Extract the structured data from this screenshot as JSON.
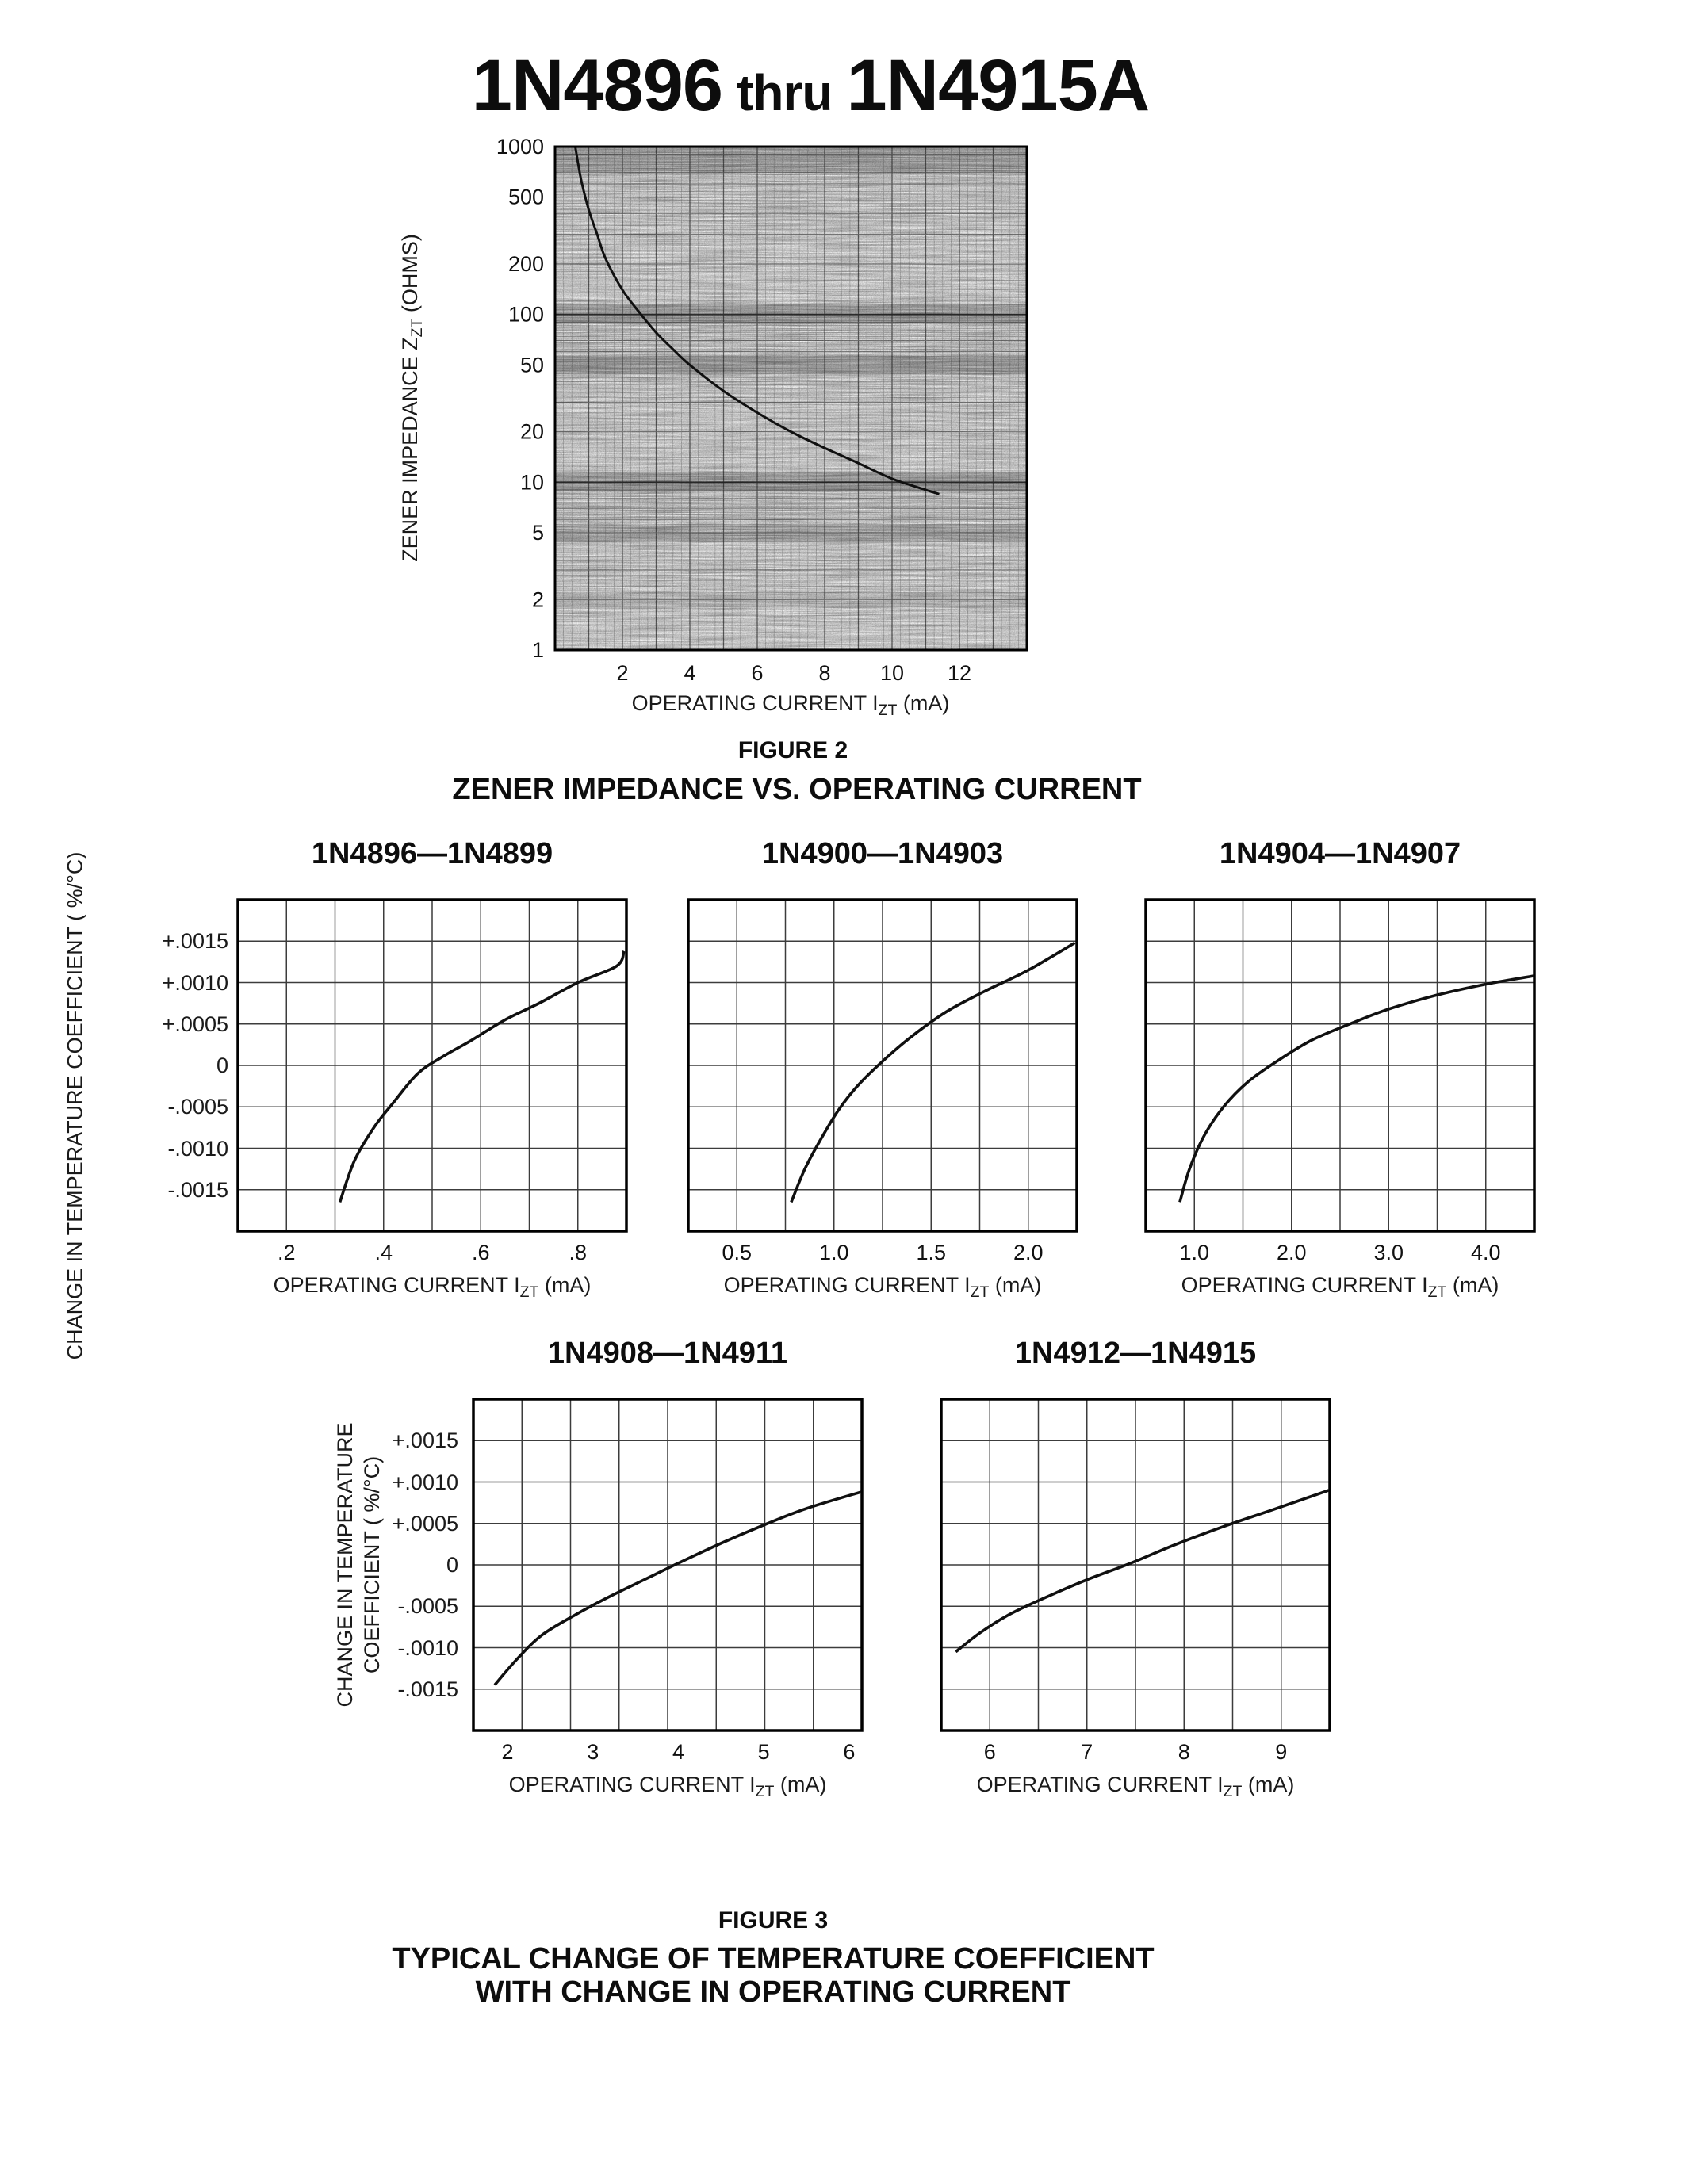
{
  "title": {
    "part_start": "1N4896",
    "thru": "thru",
    "part_end": "1N4915A"
  },
  "figure2": {
    "caption": "FIGURE 2",
    "subcaption": "ZENER IMPEDANCE VS. OPERATING CURRENT",
    "y_axis": {
      "pre": "ZENER IMPEDANCE Z",
      "sub": "ZT",
      "post": " (OHMS)"
    },
    "x_axis": {
      "pre": "OPERATING CURRENT I",
      "sub": "ZT",
      "post": " (mA)"
    }
  },
  "figure3": {
    "caption": "FIGURE 3",
    "subcaption_line1": "TYPICAL CHANGE OF TEMPERATURE COEFFICIENT",
    "subcaption_line2": "WITH CHANGE IN OPERATING CURRENT",
    "row1_y_axis_label": "CHANGE IN TEMPERATURE COEFFICIENT ( %/°C)",
    "row2_y_axis_label_line1": "CHANGE IN TEMPERATURE",
    "row2_y_axis_label_line2": "COEFFICIENT ( %/°C)",
    "x_axis": {
      "pre": "OPERATING CURRENT I",
      "sub": "ZT",
      "post": " (mA)"
    },
    "y_ticks": [
      {
        "label": "+.0015",
        "value": 0.0015
      },
      {
        "label": "+.0010",
        "value": 0.001
      },
      {
        "label": "+.0005",
        "value": 0.0005
      },
      {
        "label": "0",
        "value": 0
      },
      {
        "label": "-.0005",
        "value": -0.0005
      },
      {
        "label": "-.0010",
        "value": -0.001
      },
      {
        "label": "-.0015",
        "value": -0.0015
      }
    ]
  },
  "chart_data": [
    {
      "type": "line",
      "title": "ZENER IMPEDANCE VS. OPERATING CURRENT",
      "xlabel": "OPERATING CURRENT IZT (mA)",
      "ylabel": "ZENER IMPEDANCE ZZT (OHMS)",
      "x_scale": "linear",
      "y_scale": "log",
      "xlim": [
        0,
        14
      ],
      "ylim": [
        1,
        1000
      ],
      "grid": "dense scanned log-log grid",
      "x_ticks": [
        {
          "label": "2",
          "value": 2
        },
        {
          "label": "4",
          "value": 4
        },
        {
          "label": "6",
          "value": 6
        },
        {
          "label": "8",
          "value": 8
        },
        {
          "label": "10",
          "value": 10
        },
        {
          "label": "12",
          "value": 12
        }
      ],
      "y_ticks": [
        {
          "label": "1000",
          "value": 1000
        },
        {
          "label": "500",
          "value": 500
        },
        {
          "label": "200",
          "value": 200
        },
        {
          "label": "100",
          "value": 100
        },
        {
          "label": "50",
          "value": 50
        },
        {
          "label": "20",
          "value": 20
        },
        {
          "label": "10",
          "value": 10
        },
        {
          "label": "5",
          "value": 5
        },
        {
          "label": "2",
          "value": 2
        },
        {
          "label": "1",
          "value": 1
        }
      ],
      "points": [
        [
          0.6,
          1000
        ],
        [
          0.7,
          760
        ],
        [
          0.8,
          600
        ],
        [
          1.0,
          420
        ],
        [
          1.25,
          300
        ],
        [
          1.5,
          215
        ],
        [
          2,
          140
        ],
        [
          2.5,
          103
        ],
        [
          3,
          78
        ],
        [
          3.5,
          62
        ],
        [
          4,
          50
        ],
        [
          5,
          35
        ],
        [
          6,
          26
        ],
        [
          7,
          20
        ],
        [
          8,
          16
        ],
        [
          9,
          13
        ],
        [
          10,
          10.5
        ],
        [
          11,
          9
        ],
        [
          11.4,
          8.5
        ]
      ]
    },
    {
      "type": "line",
      "title": "1N4896—1N4899",
      "xlabel": "OPERATING CURRENT IZT (mA)",
      "ylabel": "CHANGE IN TEMPERATURE COEFFICIENT ( %/°C)",
      "xlim": [
        0.1,
        0.9
      ],
      "ylim": [
        -0.002,
        0.002
      ],
      "x_ticks": [
        {
          "label": ".2",
          "value": 0.2
        },
        {
          "label": ".4",
          "value": 0.4
        },
        {
          "label": ".6",
          "value": 0.6
        },
        {
          "label": ".8",
          "value": 0.8
        }
      ],
      "points": [
        [
          0.31,
          -0.00165
        ],
        [
          0.34,
          -0.00115
        ],
        [
          0.38,
          -0.00075
        ],
        [
          0.42,
          -0.00045
        ],
        [
          0.47,
          -0.0001
        ],
        [
          0.52,
          0.0001
        ],
        [
          0.58,
          0.0003
        ],
        [
          0.65,
          0.00055
        ],
        [
          0.72,
          0.00075
        ],
        [
          0.8,
          0.001
        ],
        [
          0.88,
          0.0012
        ],
        [
          0.895,
          0.00138
        ]
      ]
    },
    {
      "type": "line",
      "title": "1N4900—1N4903",
      "xlabel": "OPERATING CURRENT IZT (mA)",
      "ylabel": "CHANGE IN TEMPERATURE COEFFICIENT ( %/°C)",
      "xlim": [
        0.25,
        2.25
      ],
      "ylim": [
        -0.002,
        0.002
      ],
      "x_ticks": [
        {
          "label": "0.5",
          "value": 0.5
        },
        {
          "label": "1.0",
          "value": 1.0
        },
        {
          "label": "1.5",
          "value": 1.5
        },
        {
          "label": "2.0",
          "value": 2.0
        }
      ],
      "points": [
        [
          0.78,
          -0.00165
        ],
        [
          0.85,
          -0.00125
        ],
        [
          0.93,
          -0.0009
        ],
        [
          1.02,
          -0.00055
        ],
        [
          1.12,
          -0.00025
        ],
        [
          1.25,
          5e-05
        ],
        [
          1.4,
          0.00035
        ],
        [
          1.58,
          0.00065
        ],
        [
          1.78,
          0.0009
        ],
        [
          2.0,
          0.00115
        ],
        [
          2.24,
          0.00148
        ]
      ]
    },
    {
      "type": "line",
      "title": "1N4904—1N4907",
      "xlabel": "OPERATING CURRENT IZT (mA)",
      "ylabel": "CHANGE IN TEMPERATURE COEFFICIENT ( %/°C)",
      "xlim": [
        0.5,
        4.5
      ],
      "ylim": [
        -0.002,
        0.002
      ],
      "x_ticks": [
        {
          "label": "1.0",
          "value": 1.0
        },
        {
          "label": "2.0",
          "value": 2.0
        },
        {
          "label": "3.0",
          "value": 3.0
        },
        {
          "label": "4.0",
          "value": 4.0
        }
      ],
      "points": [
        [
          0.85,
          -0.00165
        ],
        [
          0.95,
          -0.00125
        ],
        [
          1.1,
          -0.00085
        ],
        [
          1.3,
          -0.0005
        ],
        [
          1.55,
          -0.0002
        ],
        [
          1.85,
          5e-05
        ],
        [
          2.2,
          0.0003
        ],
        [
          2.6,
          0.0005
        ],
        [
          3.0,
          0.00068
        ],
        [
          3.5,
          0.00085
        ],
        [
          4.0,
          0.00098
        ],
        [
          4.49,
          0.00108
        ]
      ]
    },
    {
      "type": "line",
      "title": "1N4908—1N4911",
      "xlabel": "OPERATING CURRENT IZT (mA)",
      "ylabel": "CHANGE IN TEMPERATURE COEFFICIENT ( %/°C)",
      "xlim": [
        1.6,
        6.15
      ],
      "ylim": [
        -0.002,
        0.002
      ],
      "x_ticks": [
        {
          "label": "2",
          "value": 2
        },
        {
          "label": "3",
          "value": 3
        },
        {
          "label": "4",
          "value": 4
        },
        {
          "label": "5",
          "value": 5
        },
        {
          "label": "6",
          "value": 6
        }
      ],
      "points": [
        [
          1.85,
          -0.00145
        ],
        [
          2.1,
          -0.00115
        ],
        [
          2.4,
          -0.00085
        ],
        [
          2.8,
          -0.0006
        ],
        [
          3.2,
          -0.00038
        ],
        [
          3.6,
          -0.00018
        ],
        [
          4.0,
          2e-05
        ],
        [
          4.5,
          0.00026
        ],
        [
          5.0,
          0.00048
        ],
        [
          5.5,
          0.00068
        ],
        [
          6.14,
          0.00088
        ]
      ]
    },
    {
      "type": "line",
      "title": "1N4912—1N4915",
      "xlabel": "OPERATING CURRENT IZT (mA)",
      "ylabel": "CHANGE IN TEMPERATURE COEFFICIENT ( %/°C)",
      "xlim": [
        5.5,
        9.5
      ],
      "ylim": [
        -0.002,
        0.002
      ],
      "x_ticks": [
        {
          "label": "6",
          "value": 6
        },
        {
          "label": "7",
          "value": 7
        },
        {
          "label": "8",
          "value": 8
        },
        {
          "label": "9",
          "value": 9
        }
      ],
      "points": [
        [
          5.65,
          -0.00105
        ],
        [
          5.9,
          -0.00082
        ],
        [
          6.2,
          -0.0006
        ],
        [
          6.6,
          -0.00038
        ],
        [
          7.0,
          -0.00018
        ],
        [
          7.45,
          2e-05
        ],
        [
          7.9,
          0.00024
        ],
        [
          8.4,
          0.00046
        ],
        [
          8.9,
          0.00066
        ],
        [
          9.49,
          0.0009
        ]
      ]
    }
  ]
}
